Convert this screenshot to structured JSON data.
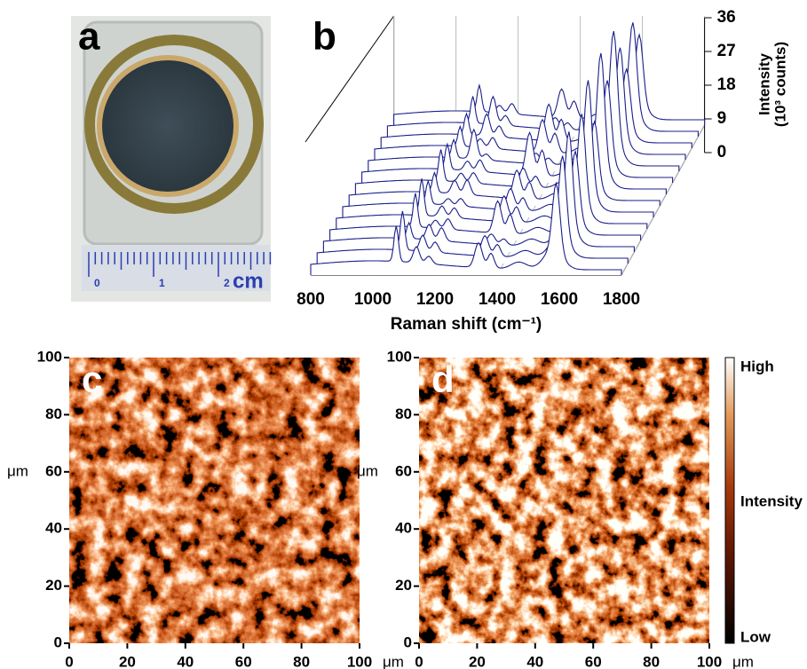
{
  "panel_a": {
    "label": "a",
    "ruler_labels": [
      0,
      1,
      2
    ],
    "ruler_unit": "cm"
  },
  "panel_b": {
    "label": "b",
    "x_ticks": [
      800,
      1000,
      1200,
      1400,
      1600,
      1800
    ],
    "x_label": "Raman shift (cm⁻¹)",
    "z_ticks": [
      36,
      27,
      18,
      9,
      0
    ],
    "z_label": [
      "Intensity",
      "(10³ counts)"
    ]
  },
  "panel_c": {
    "label": "c",
    "y_ticks": [
      100,
      80,
      60,
      40,
      20,
      0
    ],
    "x_ticks": [
      0,
      20,
      40,
      60,
      80,
      100
    ],
    "unit": "μm"
  },
  "panel_d": {
    "label": "d",
    "y_ticks": [
      100,
      80,
      60,
      40,
      20,
      0
    ],
    "x_ticks": [
      0,
      20,
      40,
      60,
      80,
      100
    ],
    "unit": "μm"
  },
  "colorbar": {
    "high": "High",
    "label": "Intensity",
    "low": "Low"
  }
}
